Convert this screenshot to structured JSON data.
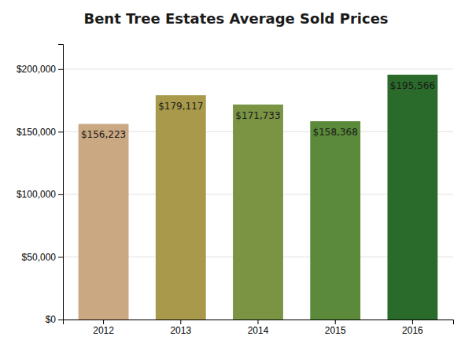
{
  "chart_data": {
    "type": "bar",
    "title": "Bent Tree Estates Average Sold Prices",
    "categories": [
      "2012",
      "2013",
      "2014",
      "2015",
      "2016"
    ],
    "values": [
      156223,
      179117,
      171733,
      158368,
      195566
    ],
    "value_labels": [
      "$156,223",
      "$179,117",
      "$171,733",
      "$158,368",
      "$195,566"
    ],
    "colors": [
      "#C9A882",
      "#A89A4A",
      "#7A9444",
      "#5A8A3A",
      "#2A6A2A"
    ],
    "ylim": [
      0,
      220000
    ],
    "yticks": [
      {
        "value": 0,
        "label": "$0"
      },
      {
        "value": 50000,
        "label": "$50,000"
      },
      {
        "value": 100000,
        "label": "$100,000"
      },
      {
        "value": 150000,
        "label": "$150,000"
      },
      {
        "value": 200000,
        "label": "$200,000"
      }
    ],
    "grid": true,
    "data_labels": true
  }
}
